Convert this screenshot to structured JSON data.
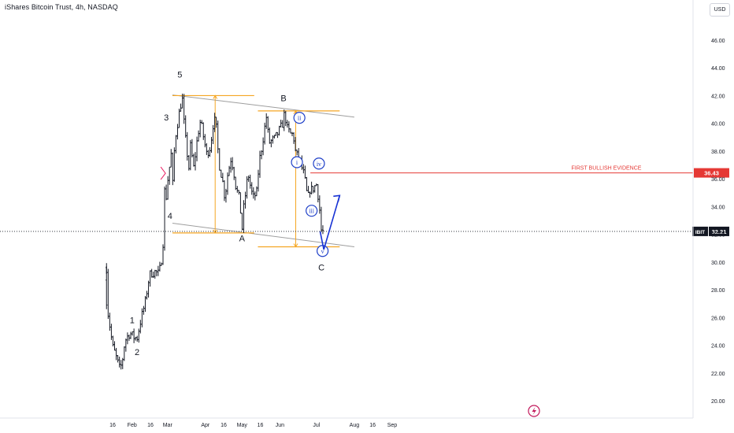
{
  "header": {
    "symbol_title": "iShares Bitcoin Trust, 4h, NASDAQ",
    "currency_button": "USD"
  },
  "colors": {
    "price_bars": "#131722",
    "channel_lines": "#9e9e9e",
    "fib_range": "#f5a623",
    "bullish_level": "#e53935",
    "wave_circle": "#1e3fc8",
    "projection_arrow": "#1833d4",
    "price_label_bg": "#131722",
    "bullish_label_bg": "#e53935",
    "ticker_label_bg": "#131722",
    "logo": "#c2185b"
  },
  "chart_data": {
    "type": "ohlc",
    "symbol": "IBIT",
    "timeframe": "4h",
    "y_axis": {
      "ticks": [
        "20.00",
        "22.00",
        "24.00",
        "26.00",
        "28.00",
        "30.00",
        "32.00",
        "34.00",
        "36.00",
        "38.00",
        "40.00",
        "42.00",
        "44.00",
        "46.00"
      ],
      "range": [
        19.2,
        47.4
      ]
    },
    "x_axis": {
      "ticks": [
        "16",
        "Feb",
        "16",
        "Mar",
        "Apr",
        "16",
        "May",
        "16",
        "Jun",
        "Jul",
        "Aug",
        "16",
        "Sep"
      ]
    },
    "price_path": [
      [
        "2024-01-11",
        29.6
      ],
      [
        "2024-01-12",
        26.5
      ],
      [
        "2024-01-16",
        23.9
      ],
      [
        "2024-01-18",
        23.4
      ],
      [
        "2024-01-22",
        22.2
      ],
      [
        "2024-01-24",
        22.9
      ],
      [
        "2024-01-26",
        24.3
      ],
      [
        "2024-01-30",
        24.9
      ],
      [
        "2024-02-02",
        24.6
      ],
      [
        "2024-02-05",
        24.5
      ],
      [
        "2024-02-08",
        25.8
      ],
      [
        "2024-02-12",
        27.2
      ],
      [
        "2024-02-14",
        28.5
      ],
      [
        "2024-02-16",
        29.2
      ],
      [
        "2024-02-20",
        29.3
      ],
      [
        "2024-02-23",
        29.1
      ],
      [
        "2024-02-26",
        30.8
      ],
      [
        "2024-02-27",
        32.9
      ],
      [
        "2024-02-28",
        36.5
      ],
      [
        "2024-02-29",
        34.6
      ],
      [
        "2024-03-01",
        35.8
      ],
      [
        "2024-03-04",
        37.8
      ],
      [
        "2024-03-05",
        35.2
      ],
      [
        "2024-03-07",
        38.8
      ],
      [
        "2024-03-11",
        41.0
      ],
      [
        "2024-03-13",
        41.9
      ],
      [
        "2024-03-15",
        39.4
      ],
      [
        "2024-03-19",
        36.4
      ],
      [
        "2024-03-20",
        38.9
      ],
      [
        "2024-03-22",
        36.5
      ],
      [
        "2024-03-26",
        39.3
      ],
      [
        "2024-03-28",
        40.2
      ],
      [
        "2024-04-02",
        37.8
      ],
      [
        "2024-04-05",
        38.3
      ],
      [
        "2024-04-08",
        40.4
      ],
      [
        "2024-04-10",
        39.6
      ],
      [
        "2024-04-12",
        37.2
      ],
      [
        "2024-04-15",
        35.9
      ],
      [
        "2024-04-17",
        34.6
      ],
      [
        "2024-04-19",
        36.2
      ],
      [
        "2024-04-22",
        37.5
      ],
      [
        "2024-04-24",
        36.7
      ],
      [
        "2024-04-26",
        35.4
      ],
      [
        "2024-04-29",
        34.5
      ],
      [
        "2024-05-01",
        32.3
      ],
      [
        "2024-05-02",
        33.6
      ],
      [
        "2024-05-06",
        36.4
      ],
      [
        "2024-05-08",
        35.4
      ],
      [
        "2024-05-10",
        34.6
      ],
      [
        "2024-05-13",
        35.0
      ],
      [
        "2024-05-15",
        37.2
      ],
      [
        "2024-05-17",
        38.2
      ],
      [
        "2024-05-21",
        40.5
      ],
      [
        "2024-05-23",
        38.6
      ],
      [
        "2024-05-28",
        38.9
      ],
      [
        "2024-06-03",
        39.9
      ],
      [
        "2024-06-05",
        40.8
      ],
      [
        "2024-06-07",
        39.6
      ],
      [
        "2024-06-10",
        39.2
      ],
      [
        "2024-06-12",
        39.2
      ],
      [
        "2024-06-14",
        37.8
      ],
      [
        "2024-06-17",
        37.4
      ],
      [
        "2024-06-19",
        36.8
      ],
      [
        "2024-06-21",
        36.2
      ],
      [
        "2024-06-24",
        34.4
      ],
      [
        "2024-06-25",
        35.3
      ],
      [
        "2024-06-27",
        35.2
      ],
      [
        "2024-07-01",
        35.6
      ],
      [
        "2024-07-03",
        34.4
      ],
      [
        "2024-07-05",
        32.2
      ],
      [
        "2024-07-07",
        32.21
      ]
    ],
    "last_price": "32.21",
    "ticker_label": "IBIT",
    "annotations": {
      "wave_labels": [
        {
          "text": "1",
          "date": "2024-02-01",
          "price": 25.6
        },
        {
          "text": "2",
          "date": "2024-02-05",
          "price": 23.3
        },
        {
          "text": "3",
          "date": "2024-02-29",
          "price": 40.2
        },
        {
          "text": "4",
          "date": "2024-03-03",
          "price": 33.1
        },
        {
          "text": "5",
          "date": "2024-03-11",
          "price": 43.3
        },
        {
          "text": "A",
          "date": "2024-05-01",
          "price": 31.5
        },
        {
          "text": "B",
          "date": "2024-06-04",
          "price": 41.6
        },
        {
          "text": "C",
          "date": "2024-07-05",
          "price": 29.4
        }
      ],
      "circled_labels": [
        {
          "text": "i",
          "date": "2024-06-15",
          "price": 37.2
        },
        {
          "text": "ii",
          "date": "2024-06-17",
          "price": 40.4
        },
        {
          "text": "iii",
          "date": "2024-06-27",
          "price": 33.7
        },
        {
          "text": "iv",
          "date": "2024-07-03",
          "price": 37.1
        },
        {
          "text": "v",
          "date": "2024-07-06",
          "price": 30.8
        }
      ],
      "bullish_level_text": "FIRST BULLISH EVIDENCE",
      "bullish_level_price": "36.43"
    }
  }
}
